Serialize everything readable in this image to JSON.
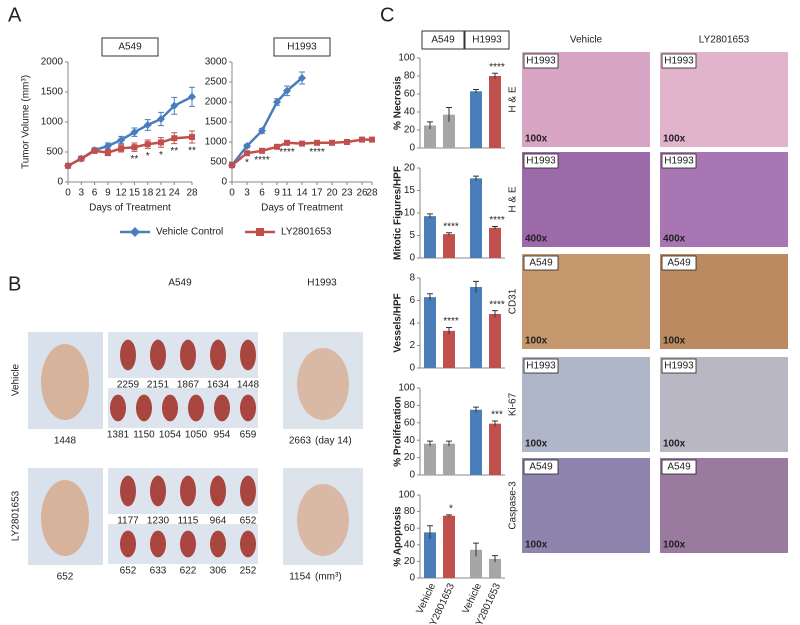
{
  "panels": {
    "a": "A",
    "b": "B",
    "c": "C"
  },
  "chart_data": [
    {
      "type": "line",
      "title": "A549",
      "ylabel": "Tumor Volume (mm³)",
      "xlabel": "Days of Treatment",
      "x": [
        0,
        3,
        6,
        9,
        12,
        15,
        18,
        21,
        24,
        28
      ],
      "xlim": [
        0,
        28
      ],
      "xticks": [
        0,
        3,
        6,
        9,
        12,
        15,
        18,
        21,
        24,
        28
      ],
      "ylim": [
        0,
        2000
      ],
      "yticks": [
        0,
        500,
        1000,
        1500,
        2000
      ],
      "series": [
        {
          "name": "Vehicle Control",
          "color": "#4a7ebb",
          "marker": "diamond",
          "values": [
            270,
            390,
            530,
            600,
            700,
            830,
            950,
            1050,
            1270,
            1420
          ],
          "errors": [
            20,
            30,
            40,
            50,
            60,
            70,
            90,
            110,
            140,
            160
          ]
        },
        {
          "name": "LY2801653",
          "color": "#c0504d",
          "marker": "square",
          "values": [
            270,
            390,
            520,
            490,
            560,
            580,
            630,
            660,
            730,
            750
          ],
          "errors": [
            20,
            30,
            40,
            50,
            60,
            70,
            70,
            80,
            90,
            100
          ]
        }
      ],
      "annotations": [
        {
          "text": "**",
          "x": 15
        },
        {
          "text": "*",
          "x": 18
        },
        {
          "text": "*",
          "x": 21
        },
        {
          "text": "**",
          "x": 24
        },
        {
          "text": "**",
          "x": 28
        }
      ]
    },
    {
      "type": "line",
      "title": "H1993",
      "xlabel": "Days of Treatment",
      "x": [
        0,
        3,
        6,
        9,
        11,
        14,
        17,
        20,
        23,
        26,
        28
      ],
      "xlim": [
        0,
        28
      ],
      "xticks": [
        0,
        3,
        6,
        9,
        11,
        14,
        17,
        20,
        23,
        26,
        28
      ],
      "ylim": [
        0,
        3000
      ],
      "yticks": [
        0,
        500,
        1000,
        1500,
        2000,
        2500,
        3000
      ],
      "series": [
        {
          "name": "Vehicle Control",
          "color": "#4a7ebb",
          "marker": "diamond",
          "values": [
            420,
            900,
            1280,
            2000,
            2280,
            2600,
            null,
            null,
            null,
            null,
            null
          ],
          "errors": [
            30,
            40,
            60,
            80,
            120,
            150,
            null,
            null,
            null,
            null,
            null
          ]
        },
        {
          "name": "LY2801653",
          "color": "#c0504d",
          "marker": "square",
          "values": [
            420,
            720,
            780,
            880,
            980,
            960,
            980,
            980,
            1000,
            1060,
            1060
          ],
          "errors": [
            30,
            40,
            40,
            50,
            40,
            40,
            40,
            40,
            40,
            40,
            40
          ]
        }
      ],
      "annotations": [
        {
          "text": "*",
          "x": 3
        },
        {
          "text": "****",
          "x": 6
        },
        {
          "text": "****",
          "x": 11
        },
        {
          "text": "****",
          "x": 17
        }
      ]
    },
    {
      "type": "bar",
      "ylabel": "% Necrosis",
      "ylim": [
        0,
        100
      ],
      "yticks": [
        0,
        20,
        40,
        60,
        80,
        100
      ],
      "values": [
        25,
        37,
        63,
        80
      ],
      "errors": [
        4,
        8,
        2,
        3
      ],
      "colors": [
        "#a6a6a6",
        "#a6a6a6",
        "#4a7ebb",
        "#c0504d"
      ],
      "annotations": [
        {
          "text": "****",
          "x": 3
        }
      ]
    },
    {
      "type": "bar",
      "ylabel": "Mitotic Figures/HPF",
      "ylim": [
        0,
        20
      ],
      "yticks": [
        0,
        5,
        10,
        15,
        20
      ],
      "values": [
        9.3,
        5.3,
        17.7,
        6.7
      ],
      "errors": [
        0.5,
        0.3,
        0.5,
        0.3
      ],
      "colors": [
        "#4a7ebb",
        "#c0504d",
        "#4a7ebb",
        "#c0504d"
      ],
      "annotations": [
        {
          "text": "****",
          "x": 1
        },
        {
          "text": "****",
          "x": 3
        }
      ]
    },
    {
      "type": "bar",
      "ylabel": "Vessels/HPF",
      "ylim": [
        0,
        8
      ],
      "yticks": [
        0,
        2,
        4,
        6,
        8
      ],
      "values": [
        6.3,
        3.3,
        7.2,
        4.8
      ],
      "errors": [
        0.3,
        0.3,
        0.5,
        0.3
      ],
      "colors": [
        "#4a7ebb",
        "#c0504d",
        "#4a7ebb",
        "#c0504d"
      ],
      "annotations": [
        {
          "text": "****",
          "x": 1
        },
        {
          "text": "****",
          "x": 3
        }
      ]
    },
    {
      "type": "bar",
      "ylabel": "% Proliferation",
      "ylim": [
        0,
        100
      ],
      "yticks": [
        0,
        20,
        40,
        60,
        80,
        100
      ],
      "values": [
        36,
        36,
        75,
        59
      ],
      "errors": [
        3,
        3,
        3,
        3
      ],
      "colors": [
        "#a6a6a6",
        "#a6a6a6",
        "#4a7ebb",
        "#c0504d"
      ],
      "annotations": [
        {
          "text": "***",
          "x": 3
        }
      ]
    },
    {
      "type": "bar",
      "ylabel": "% Apoptosis",
      "ylim": [
        0,
        100
      ],
      "yticks": [
        0,
        20,
        40,
        60,
        80,
        100
      ],
      "categories": [
        "Vehicle",
        "LY2801653",
        "Vehicle",
        "LY2801653"
      ],
      "values": [
        55,
        75,
        34,
        23
      ],
      "errors": [
        8,
        1,
        8,
        4
      ],
      "colors": [
        "#4a7ebb",
        "#c0504d",
        "#a6a6a6",
        "#a6a6a6"
      ],
      "annotations": [
        {
          "text": "*",
          "x": 1
        }
      ]
    }
  ],
  "panel_b": {
    "cell_lines": [
      "A549",
      "H1993"
    ],
    "rows": [
      {
        "label": "Vehicle",
        "mouse": 1448,
        "tumors": [
          [
            2259,
            2151,
            1867,
            1634,
            1448
          ],
          [
            1381,
            1150,
            1054,
            1050,
            954,
            659
          ]
        ],
        "h1993": "2663",
        "h1993_note": "(day 14)"
      },
      {
        "label": "LY2801653",
        "mouse": 652,
        "tumors": [
          [
            1177,
            1230,
            1115,
            964,
            652
          ],
          [
            652,
            633,
            622,
            306,
            252
          ]
        ],
        "h1993": "1154",
        "h1993_note": "(mm³)"
      }
    ]
  },
  "panel_c": {
    "groups": [
      "A549",
      "H1993"
    ],
    "columns": [
      "Vehicle",
      "LY2801653"
    ],
    "rows": [
      {
        "label": "H & E",
        "tags": [
          "H1993",
          "H1993"
        ],
        "magnification": "100x"
      },
      {
        "label": "H & E",
        "tags": [
          "H1993",
          "H1993"
        ],
        "magnification": "400x"
      },
      {
        "label": "CD31",
        "tags": [
          "A549",
          "A549"
        ],
        "magnification": "100x"
      },
      {
        "label": "Ki-67",
        "tags": [
          "H1993",
          "H1993"
        ],
        "magnification": "100x"
      },
      {
        "label": "Caspase-3",
        "tags": [
          "A549",
          "A549"
        ],
        "magnification": "100x"
      }
    ]
  }
}
